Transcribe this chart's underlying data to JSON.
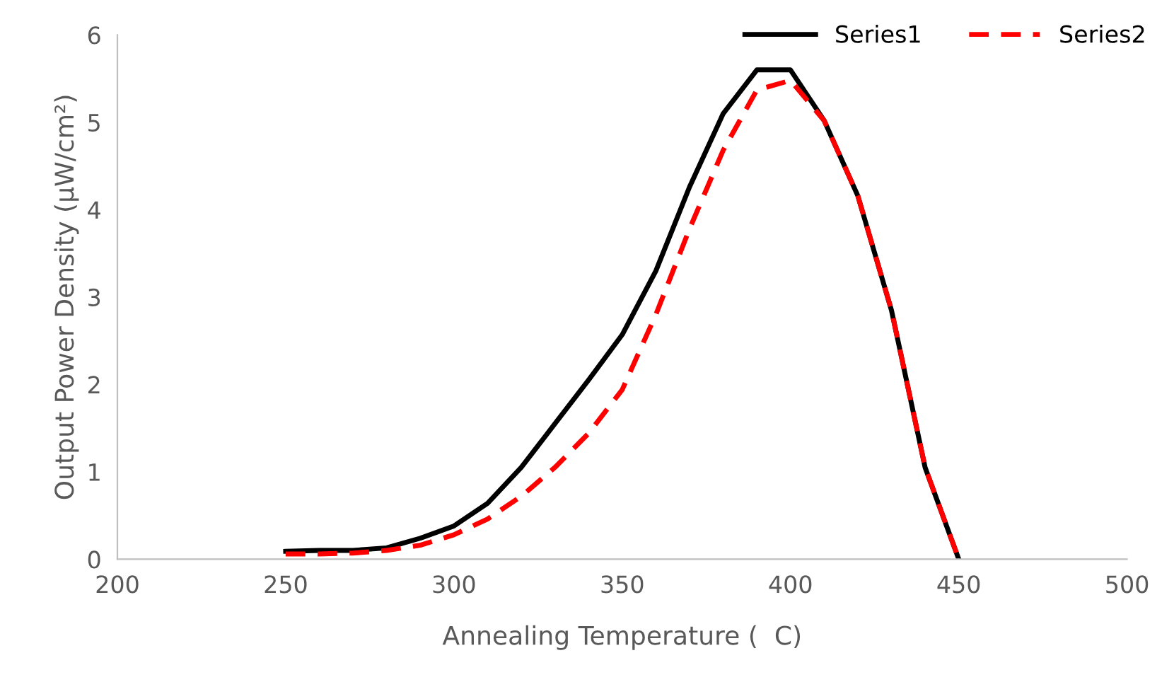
{
  "chart_data": {
    "type": "line",
    "xlabel": "Annealing Temperature (  C)",
    "ylabel": "Output Power Density (µW/cm²)",
    "x": [
      250,
      260,
      270,
      280,
      290,
      300,
      310,
      320,
      330,
      340,
      350,
      360,
      370,
      380,
      390,
      400,
      410,
      420,
      430,
      440,
      450
    ],
    "series": [
      {
        "name": "Series1",
        "color": "#000000",
        "line_style": "solid",
        "values": [
          0.09,
          0.1,
          0.1,
          0.13,
          0.24,
          0.38,
          0.64,
          1.05,
          1.55,
          2.05,
          2.57,
          3.3,
          4.26,
          5.1,
          5.6,
          5.6,
          5.02,
          4.16,
          2.85,
          1.05,
          0
        ]
      },
      {
        "name": "Series2",
        "color": "#ff0000",
        "line_style": "dashed",
        "values": [
          0.06,
          0.06,
          0.07,
          0.1,
          0.16,
          0.28,
          0.46,
          0.72,
          1.05,
          1.44,
          1.94,
          2.8,
          3.78,
          4.68,
          5.37,
          5.48,
          5.02,
          4.16,
          2.85,
          1.05,
          0
        ]
      }
    ],
    "xlim": [
      200,
      500
    ],
    "xticks": [
      200,
      250,
      300,
      350,
      400,
      450,
      500
    ],
    "ylim": [
      0,
      6
    ],
    "yticks": [
      0,
      1,
      2,
      3,
      4,
      5,
      6
    ],
    "grid": false,
    "legend": "top right",
    "marker": "none"
  }
}
